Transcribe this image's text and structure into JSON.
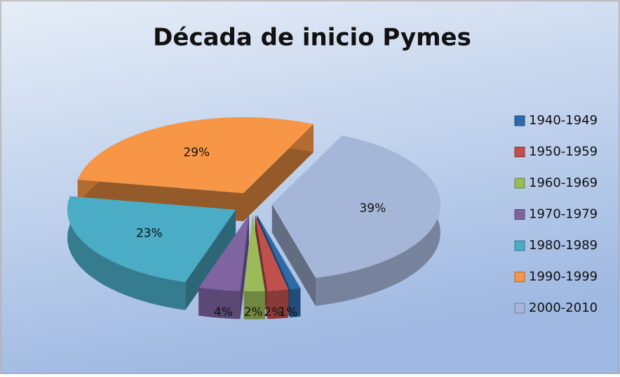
{
  "chart_data": {
    "type": "pie",
    "title": "Década de inicio Pymes",
    "categories": [
      "1940-1949",
      "1950-1959",
      "1960-1969",
      "1970-1979",
      "1980-1989",
      "1990-1999",
      "2000-2010"
    ],
    "values": [
      1,
      2,
      2,
      4,
      23,
      29,
      39
    ],
    "value_labels": [
      "1%",
      "2%",
      "2%",
      "4%",
      "23%",
      "29%",
      "39%"
    ],
    "colors": [
      "#2f6aa8",
      "#c0504d",
      "#9bbb59",
      "#8064a2",
      "#4bacc6",
      "#f79646",
      "#a5b6d8"
    ],
    "legend": "right"
  }
}
